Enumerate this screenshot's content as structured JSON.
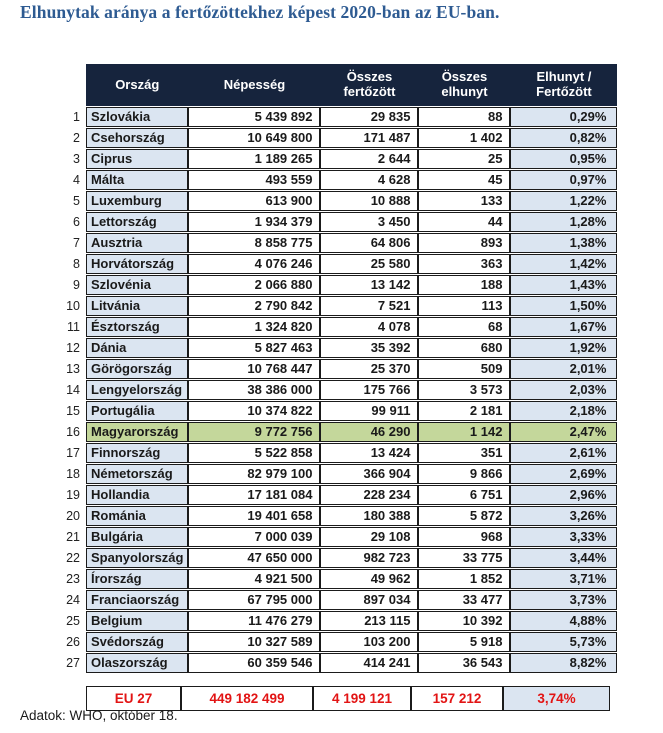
{
  "title": "Elhunytak aránya a fertőzöttekhez képest 2020-ban az EU-ban.",
  "table": {
    "headers": [
      "Ország",
      "Népesség",
      "Összes\nfertőzött",
      "Összes\nelhunyt",
      "Elhunyt /\nFertőzött"
    ],
    "rows": [
      [
        "1",
        "Szlovákia",
        "5 439 892",
        "29 835",
        "88",
        "0,29%"
      ],
      [
        "2",
        "Csehország",
        "10 649 800",
        "171 487",
        "1 402",
        "0,82%"
      ],
      [
        "3",
        "Ciprus",
        "1 189 265",
        "2 644",
        "25",
        "0,95%"
      ],
      [
        "4",
        "Málta",
        "493 559",
        "4 628",
        "45",
        "0,97%"
      ],
      [
        "5",
        "Luxemburg",
        "613 900",
        "10 888",
        "133",
        "1,22%"
      ],
      [
        "6",
        "Lettország",
        "1 934 379",
        "3 450",
        "44",
        "1,28%"
      ],
      [
        "7",
        "Ausztria",
        "8 858 775",
        "64 806",
        "893",
        "1,38%"
      ],
      [
        "8",
        "Horvátország",
        "4 076 246",
        "25 580",
        "363",
        "1,42%"
      ],
      [
        "9",
        "Szlovénia",
        "2 066 880",
        "13 142",
        "188",
        "1,43%"
      ],
      [
        "10",
        "Litvánia",
        "2 790 842",
        "7 521",
        "113",
        "1,50%"
      ],
      [
        "11",
        "Észtország",
        "1 324 820",
        "4 078",
        "68",
        "1,67%"
      ],
      [
        "12",
        "Dánia",
        "5 827 463",
        "35 392",
        "680",
        "1,92%"
      ],
      [
        "13",
        "Görögország",
        "10 768 447",
        "25 370",
        "509",
        "2,01%"
      ],
      [
        "14",
        "Lengyelország",
        "38 386 000",
        "175 766",
        "3 573",
        "2,03%"
      ],
      [
        "15",
        "Portugália",
        "10 374 822",
        "99 911",
        "2 181",
        "2,18%"
      ],
      [
        "16",
        "Magyarország",
        "9 772 756",
        "46 290",
        "1 142",
        "2,47%"
      ],
      [
        "17",
        "Finnország",
        "5 522 858",
        "13 424",
        "351",
        "2,61%"
      ],
      [
        "18",
        "Németország",
        "82 979 100",
        "366 904",
        "9 866",
        "2,69%"
      ],
      [
        "19",
        "Hollandia",
        "17 181 084",
        "228 234",
        "6 751",
        "2,96%"
      ],
      [
        "20",
        "Románia",
        "19 401 658",
        "180 388",
        "5 872",
        "3,26%"
      ],
      [
        "21",
        "Bulgária",
        "7 000 039",
        "29 108",
        "968",
        "3,33%"
      ],
      [
        "22",
        "Spanyolország",
        "47 650 000",
        "982 723",
        "33 775",
        "3,44%"
      ],
      [
        "23",
        "Írország",
        "4 921 500",
        "49 962",
        "1 852",
        "3,71%"
      ],
      [
        "24",
        "Franciaország",
        "67 795 000",
        "897 034",
        "33 477",
        "3,73%"
      ],
      [
        "25",
        "Belgium",
        "11 476 279",
        "213 115",
        "10 392",
        "4,88%"
      ],
      [
        "26",
        "Svédország",
        "10 327 589",
        "103 200",
        "5 918",
        "5,73%"
      ],
      [
        "27",
        "Olaszország",
        "60 359 546",
        "414 241",
        "36 543",
        "8,82%"
      ]
    ],
    "highlight_row_rank": "16"
  },
  "summary": {
    "label": "EU 27",
    "population": "449 182 499",
    "infected": "4 199 121",
    "deceased": "157 212",
    "ratio": "3,74%"
  },
  "footer": "Adatok: WHO, október 18.",
  "colors": {
    "title_blue": "#2e5b92",
    "header_navy": "#16243d",
    "column_light_blue": "#dbe5f1",
    "highlight_green": "#c4d79b",
    "summary_red": "#e21414",
    "border_black": "#1b1b1b"
  }
}
